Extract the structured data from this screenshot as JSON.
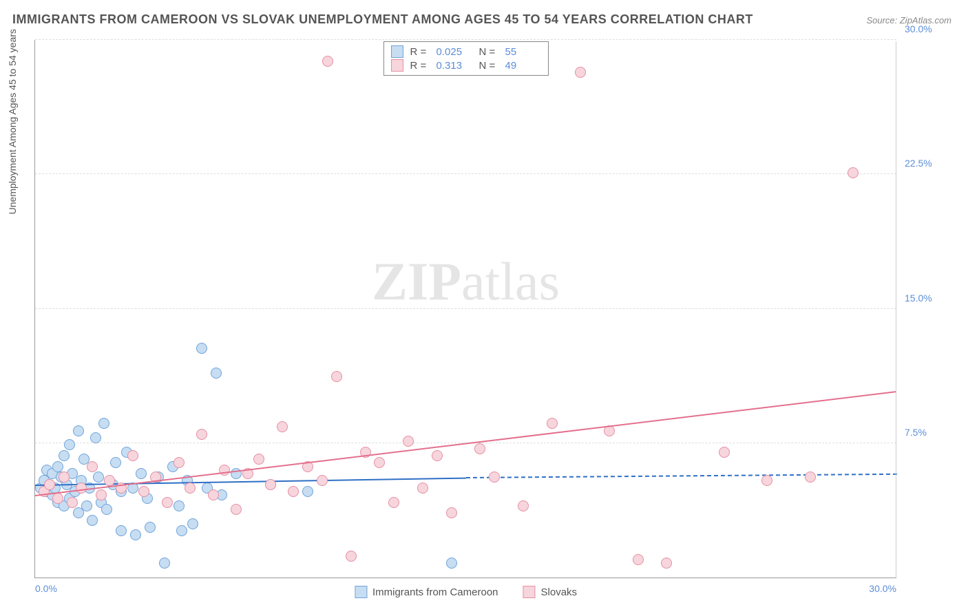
{
  "title": "IMMIGRANTS FROM CAMEROON VS SLOVAK UNEMPLOYMENT AMONG AGES 45 TO 54 YEARS CORRELATION CHART",
  "source_label": "Source: ZipAtlas.com",
  "watermark_bold": "ZIP",
  "watermark_light": "atlas",
  "y_axis_label": "Unemployment Among Ages 45 to 54 years",
  "chart": {
    "type": "scatter",
    "xlim": [
      0,
      30
    ],
    "ylim": [
      0,
      30
    ],
    "x_ticks": [
      {
        "pos": 0.0,
        "label": "0.0%"
      },
      {
        "pos": 30.0,
        "label": "30.0%"
      }
    ],
    "y_ticks": [
      {
        "pos": 7.5,
        "label": "7.5%"
      },
      {
        "pos": 15.0,
        "label": "15.0%"
      },
      {
        "pos": 22.5,
        "label": "22.5%"
      },
      {
        "pos": 30.0,
        "label": "30.0%"
      }
    ],
    "grid_y": [
      7.5,
      15.0,
      22.5,
      30.0
    ],
    "background_color": "#ffffff",
    "grid_color": "#dddddd",
    "axis_color": "#999999",
    "series": [
      {
        "key": "cameroon",
        "label": "Immigrants from Cameroon",
        "fill": "#c7ddf2",
        "stroke": "#6fa3da",
        "r_label": "R =",
        "r_value": "0.025",
        "n_label": "N =",
        "n_value": "55",
        "trend": {
          "x1": 0.0,
          "y1": 5.2,
          "x2": 15.0,
          "y2": 5.6,
          "color": "#2f6fc5",
          "dash_to_x": 30.0,
          "dash_to_y": 5.8
        },
        "points": [
          [
            0.2,
            5.0
          ],
          [
            0.3,
            5.4
          ],
          [
            0.4,
            4.8
          ],
          [
            0.4,
            6.0
          ],
          [
            0.5,
            5.2
          ],
          [
            0.6,
            4.6
          ],
          [
            0.6,
            5.8
          ],
          [
            0.7,
            5.0
          ],
          [
            0.8,
            6.2
          ],
          [
            0.8,
            4.2
          ],
          [
            0.9,
            5.6
          ],
          [
            1.0,
            4.0
          ],
          [
            1.0,
            6.8
          ],
          [
            1.1,
            5.2
          ],
          [
            1.2,
            4.4
          ],
          [
            1.2,
            7.4
          ],
          [
            1.3,
            5.8
          ],
          [
            1.4,
            4.8
          ],
          [
            1.5,
            8.2
          ],
          [
            1.5,
            3.6
          ],
          [
            1.6,
            5.4
          ],
          [
            1.7,
            6.6
          ],
          [
            1.8,
            4.0
          ],
          [
            1.9,
            5.0
          ],
          [
            2.0,
            3.2
          ],
          [
            2.1,
            7.8
          ],
          [
            2.2,
            5.6
          ],
          [
            2.3,
            4.2
          ],
          [
            2.4,
            8.6
          ],
          [
            2.5,
            3.8
          ],
          [
            2.7,
            5.2
          ],
          [
            2.8,
            6.4
          ],
          [
            3.0,
            2.6
          ],
          [
            3.0,
            4.8
          ],
          [
            3.2,
            7.0
          ],
          [
            3.4,
            5.0
          ],
          [
            3.5,
            2.4
          ],
          [
            3.7,
            5.8
          ],
          [
            3.9,
            4.4
          ],
          [
            4.0,
            2.8
          ],
          [
            4.3,
            5.6
          ],
          [
            4.5,
            0.8
          ],
          [
            4.8,
            6.2
          ],
          [
            5.0,
            4.0
          ],
          [
            5.1,
            2.6
          ],
          [
            5.3,
            5.4
          ],
          [
            5.5,
            3.0
          ],
          [
            5.8,
            12.8
          ],
          [
            6.0,
            5.0
          ],
          [
            6.3,
            11.4
          ],
          [
            6.5,
            4.6
          ],
          [
            7.0,
            5.8
          ],
          [
            8.2,
            5.2
          ],
          [
            9.5,
            4.8
          ],
          [
            14.5,
            0.8
          ]
        ]
      },
      {
        "key": "slovaks",
        "label": "Slovaks",
        "fill": "#f7d5dd",
        "stroke": "#e58fa3",
        "r_label": "R =",
        "r_value": "0.313",
        "n_label": "N =",
        "n_value": "49",
        "trend": {
          "x1": 0.0,
          "y1": 4.6,
          "x2": 30.0,
          "y2": 10.4,
          "color": "#e36f8c"
        },
        "points": [
          [
            0.3,
            4.8
          ],
          [
            0.5,
            5.2
          ],
          [
            0.8,
            4.4
          ],
          [
            1.0,
            5.6
          ],
          [
            1.3,
            4.2
          ],
          [
            1.6,
            5.0
          ],
          [
            2.0,
            6.2
          ],
          [
            2.3,
            4.6
          ],
          [
            2.6,
            5.4
          ],
          [
            3.0,
            5.0
          ],
          [
            3.4,
            6.8
          ],
          [
            3.8,
            4.8
          ],
          [
            4.2,
            5.6
          ],
          [
            4.6,
            4.2
          ],
          [
            5.0,
            6.4
          ],
          [
            5.4,
            5.0
          ],
          [
            5.8,
            8.0
          ],
          [
            6.2,
            4.6
          ],
          [
            6.6,
            6.0
          ],
          [
            7.0,
            3.8
          ],
          [
            7.4,
            5.8
          ],
          [
            7.8,
            6.6
          ],
          [
            8.2,
            5.2
          ],
          [
            8.6,
            8.4
          ],
          [
            9.0,
            4.8
          ],
          [
            9.5,
            6.2
          ],
          [
            10.0,
            5.4
          ],
          [
            10.5,
            11.2
          ],
          [
            11.0,
            1.2
          ],
          [
            11.5,
            7.0
          ],
          [
            12.0,
            6.4
          ],
          [
            12.5,
            4.2
          ],
          [
            13.0,
            7.6
          ],
          [
            13.5,
            5.0
          ],
          [
            14.0,
            6.8
          ],
          [
            14.5,
            3.6
          ],
          [
            15.5,
            7.2
          ],
          [
            16.0,
            5.6
          ],
          [
            17.0,
            4.0
          ],
          [
            18.0,
            8.6
          ],
          [
            19.0,
            28.2
          ],
          [
            20.0,
            8.2
          ],
          [
            21.0,
            1.0
          ],
          [
            22.0,
            0.8
          ],
          [
            24.0,
            7.0
          ],
          [
            25.5,
            5.4
          ],
          [
            27.0,
            5.6
          ],
          [
            28.5,
            22.6
          ],
          [
            10.2,
            28.8
          ]
        ]
      }
    ]
  },
  "legend_bottom": [
    {
      "series": "cameroon"
    },
    {
      "series": "slovaks"
    }
  ]
}
